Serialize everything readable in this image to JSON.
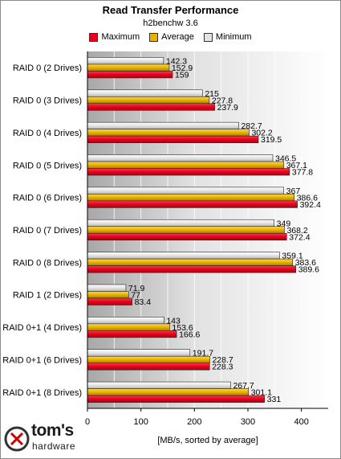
{
  "chart_data": {
    "type": "bar",
    "orientation": "horizontal",
    "title": "Read Transfer Performance",
    "subtitle": "h2benchw 3.6",
    "xlabel": "[MB/s, sorted by average]",
    "xlim": [
      0,
      450
    ],
    "xticks": [
      "0",
      "100",
      "200",
      "300",
      "400"
    ],
    "grid": true,
    "legend_position": "top",
    "categories": [
      "RAID 0 (2 Drives)",
      "RAID 0 (3 Drives)",
      "RAID 0 (4 Drives)",
      "RAID 0 (5 Drives)",
      "RAID 0 (6 Drives)",
      "RAID 0 (7 Drives)",
      "RAID 0 (8 Drives)",
      "RAID 1 (2 Drives)",
      "RAID 0+1 (4 Drives)",
      "RAID 0+1 (6 Drives)",
      "RAID 0+1 (8 Drives)"
    ],
    "series": [
      {
        "name": "Maximum",
        "color": "#e8001c",
        "values": [
          159,
          237.9,
          319.5,
          377.8,
          392.4,
          372.4,
          389.6,
          83.4,
          166.6,
          228.3,
          331
        ],
        "labels": [
          "159",
          "237.9",
          "319.5",
          "377.8",
          "392.4",
          "372.4",
          "389.6",
          "83.4",
          "166.6",
          "228.3",
          "331"
        ]
      },
      {
        "name": "Average",
        "color": "#e8b100",
        "values": [
          152.9,
          227.8,
          302.2,
          367.1,
          386.6,
          368.2,
          383.6,
          77,
          153.6,
          228.7,
          301.1
        ],
        "labels": [
          "152.9",
          "227.8",
          "302.2",
          "367.1",
          "386.6",
          "368.2",
          "383.6",
          "77",
          "153.6",
          "228.7",
          "301.1"
        ]
      },
      {
        "name": "Minimum",
        "color": "#e4e4e4",
        "values": [
          142.3,
          215,
          282.7,
          346.5,
          367,
          349,
          359.1,
          71.9,
          143,
          191.7,
          267.7
        ],
        "labels": [
          "142.3",
          "215",
          "282.7",
          "346.5",
          "367",
          "349",
          "359.1",
          "71.9",
          "143",
          "191.7",
          "267.7"
        ]
      }
    ]
  },
  "legend": {
    "maximum": "Maximum",
    "average": "Average",
    "minimum": "Minimum"
  },
  "logo": {
    "line1": "tom's",
    "line2": "hardware"
  }
}
